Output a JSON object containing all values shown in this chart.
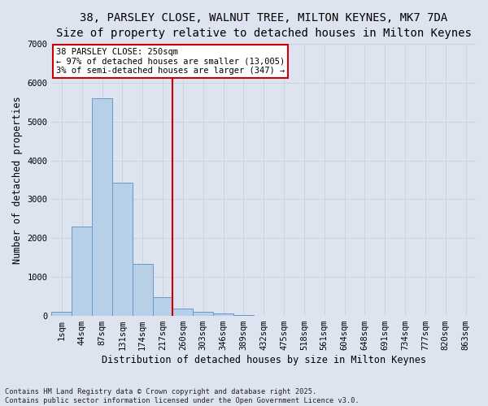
{
  "title_line1": "38, PARSLEY CLOSE, WALNUT TREE, MILTON KEYNES, MK7 7DA",
  "title_line2": "Size of property relative to detached houses in Milton Keynes",
  "xlabel": "Distribution of detached houses by size in Milton Keynes",
  "ylabel": "Number of detached properties",
  "footnote": "Contains HM Land Registry data © Crown copyright and database right 2025.\nContains public sector information licensed under the Open Government Licence v3.0.",
  "bar_labels": [
    "1sqm",
    "44sqm",
    "87sqm",
    "131sqm",
    "174sqm",
    "217sqm",
    "260sqm",
    "303sqm",
    "346sqm",
    "389sqm",
    "432sqm",
    "475sqm",
    "518sqm",
    "561sqm",
    "604sqm",
    "648sqm",
    "691sqm",
    "734sqm",
    "777sqm",
    "820sqm",
    "863sqm"
  ],
  "bar_values": [
    100,
    2300,
    5600,
    3430,
    1330,
    490,
    180,
    110,
    60,
    20,
    10,
    5,
    3,
    2,
    1,
    1,
    0,
    0,
    0,
    0,
    0
  ],
  "bar_color": "#b8cfe8",
  "bar_edge_color": "#6699cc",
  "vline_index": 6,
  "vline_color": "#cc0000",
  "annotation_text": "38 PARSLEY CLOSE: 250sqm\n← 97% of detached houses are smaller (13,005)\n3% of semi-detached houses are larger (347) →",
  "annotation_box_color": "#ffffff",
  "annotation_box_edge": "#cc0000",
  "ylim": [
    0,
    7000
  ],
  "yticks": [
    0,
    1000,
    2000,
    3000,
    4000,
    5000,
    6000,
    7000
  ],
  "grid_color": "#c8d4e4",
  "background_color": "#dde4f0",
  "title_fontsize": 10,
  "subtitle_fontsize": 9,
  "axis_label_fontsize": 8.5,
  "tick_fontsize": 7.5,
  "annot_fontsize": 7.5
}
